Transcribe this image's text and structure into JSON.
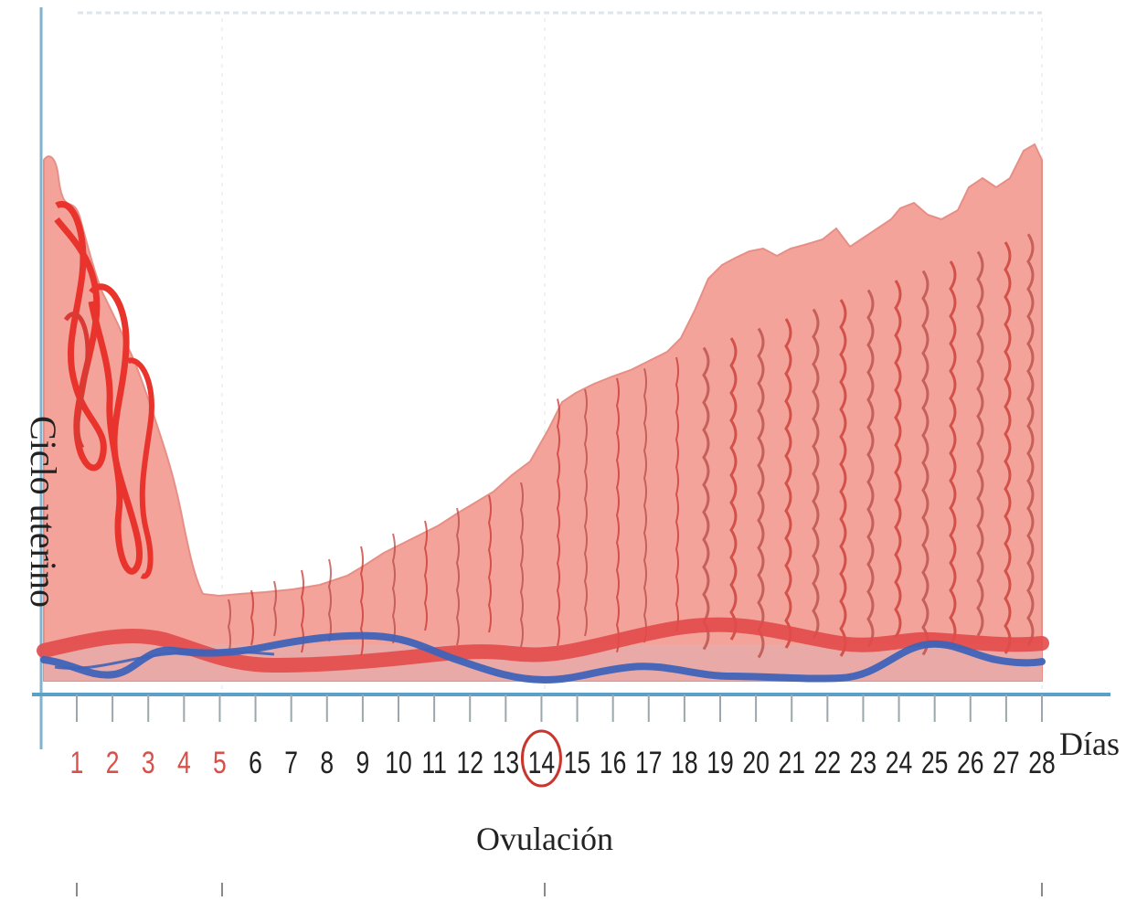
{
  "diagram": {
    "y_label": "Ciclo uterino",
    "x_unit_label": "Días",
    "ovulation_label": "Ovulación",
    "days": [
      "1",
      "2",
      "3",
      "4",
      "5",
      "6",
      "7",
      "8",
      "9",
      "10",
      "11",
      "12",
      "13",
      "14",
      "15",
      "16",
      "17",
      "18",
      "19",
      "20",
      "21",
      "22",
      "23",
      "24",
      "25",
      "26",
      "27",
      "28"
    ],
    "menstrual_days": [
      "1",
      "2",
      "3",
      "4",
      "5"
    ],
    "ovulation_day": "14",
    "colors": {
      "endometrium": "#f4a39b",
      "endometrium_dark": "#e08a82",
      "gland": "#c8362e",
      "menses": "#e8342c",
      "artery": "#e24a4a",
      "vein": "#3f63b8",
      "baseline": "#5aa0c8",
      "menstrual_day_text": "#d8504a",
      "day_text": "#222222",
      "ovulation_circle": "#c8362e",
      "grid": "#d9e4ea"
    }
  }
}
